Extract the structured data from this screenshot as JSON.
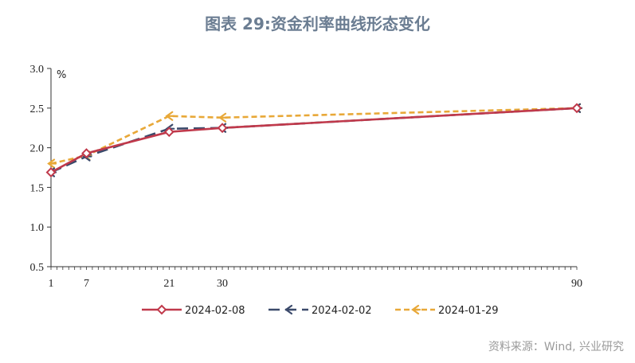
{
  "title": "图表 29:资金利率曲线形态变化",
  "source": "资料来源：Wind, 兴业研究",
  "chart_data": {
    "type": "line",
    "ylabel": "%",
    "ylim": [
      0.5,
      3.0
    ],
    "yticks": [
      "3.0",
      "2.5",
      "2.0",
      "1.5",
      "1.0",
      "0.5"
    ],
    "xlim": [
      1,
      90
    ],
    "x": [
      1,
      7,
      21,
      30,
      90
    ],
    "xticks": [
      "1",
      "7",
      "21",
      "30",
      "90"
    ],
    "legend_position": "bottom",
    "series": [
      {
        "name": "2024-02-08",
        "color": "#c0394b",
        "dash": "solid",
        "marker": "diamond",
        "values": [
          1.69,
          1.93,
          2.2,
          2.25,
          2.5
        ]
      },
      {
        "name": "2024-02-02",
        "color": "#3b4a6b",
        "dash": "long-dash",
        "marker": "arrow",
        "values": [
          1.69,
          1.89,
          2.24,
          2.25,
          2.5
        ]
      },
      {
        "name": "2024-01-29",
        "color": "#e8a838",
        "dash": "short-dash",
        "marker": "arrow",
        "values": [
          1.8,
          1.9,
          2.4,
          2.38,
          2.5
        ]
      }
    ]
  }
}
